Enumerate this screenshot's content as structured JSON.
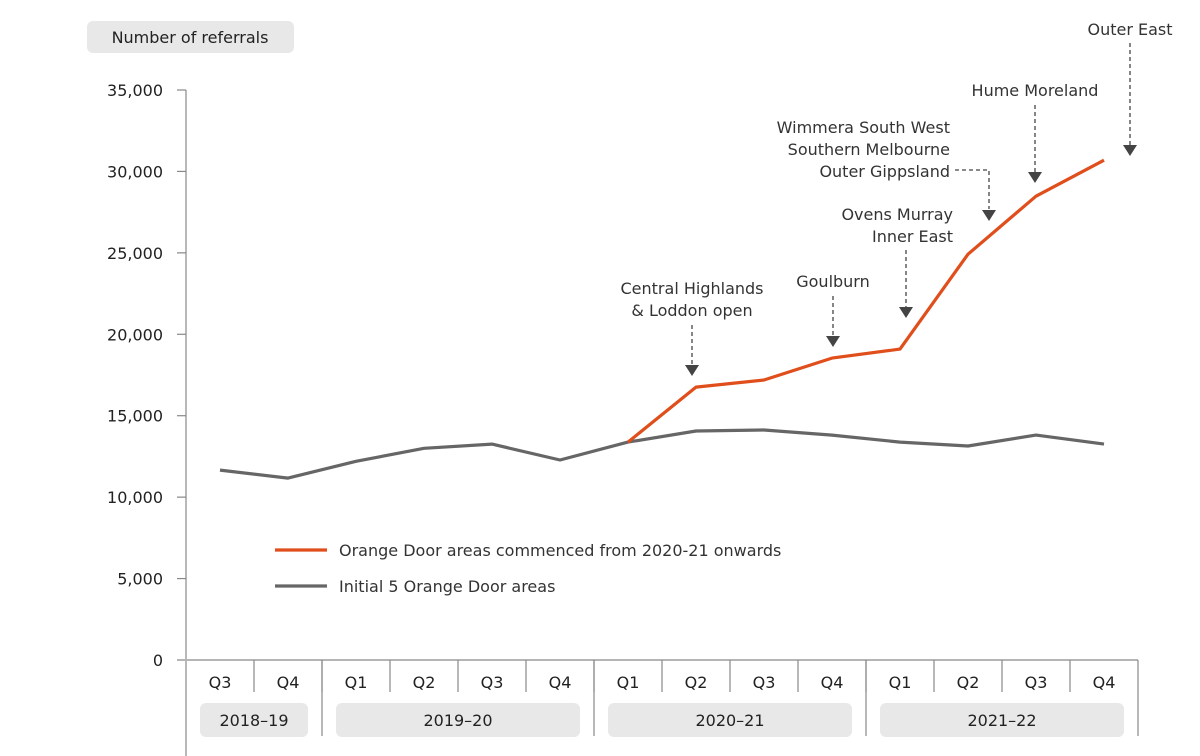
{
  "chart_data": {
    "type": "line",
    "title": "",
    "ylabel": "Number of referrals",
    "xlabel": "",
    "ylim": [
      0,
      35000
    ],
    "yticks": [
      0,
      5000,
      10000,
      15000,
      20000,
      25000,
      30000,
      35000
    ],
    "ytick_labels": [
      "0",
      "5,000",
      "10,000",
      "15,000",
      "20,000",
      "25,000",
      "30,000",
      "35,000"
    ],
    "categories": [
      "Q3",
      "Q4",
      "Q1",
      "Q2",
      "Q3",
      "Q4",
      "Q1",
      "Q2",
      "Q3",
      "Q4",
      "Q1",
      "Q2",
      "Q3",
      "Q4"
    ],
    "financial_years": [
      {
        "label": "2018–19",
        "quarters": 2
      },
      {
        "label": "2019–20",
        "quarters": 4
      },
      {
        "label": "2020–21",
        "quarters": 4
      },
      {
        "label": "2021–22",
        "quarters": 4
      }
    ],
    "series": [
      {
        "name": "Orange Door areas commenced from 2020-21 onwards",
        "color": "#e04e1c",
        "values": [
          null,
          null,
          null,
          null,
          null,
          null,
          13380,
          16760,
          17190,
          18540,
          19090,
          24920,
          28480,
          30690
        ]
      },
      {
        "name": "Initial 5 Orange Door areas",
        "color": "#666666",
        "values": [
          11660,
          11170,
          12200,
          13000,
          13260,
          12280,
          13380,
          14060,
          14120,
          13810,
          13380,
          13140,
          13810,
          13260
        ]
      }
    ],
    "legend_position": "bottom-left-inside",
    "grid": false,
    "annotations": [
      {
        "lines": [
          "Central Highlands",
          "& Loddon open"
        ],
        "index": 7
      },
      {
        "lines": [
          "Goulburn"
        ],
        "index": 9
      },
      {
        "lines": [
          "Ovens Murray",
          "Inner East"
        ],
        "index": 10
      },
      {
        "lines": [
          "Wimmera South West",
          "Southern Melbourne",
          "Outer Gippsland"
        ],
        "index": 11
      },
      {
        "lines": [
          "Hume Moreland"
        ],
        "index": 12
      },
      {
        "lines": [
          "Outer East"
        ],
        "index": 13
      }
    ]
  },
  "colors": {
    "axis": "#888888",
    "label_bg": "#e8e8e8",
    "arrow": "#444444"
  }
}
